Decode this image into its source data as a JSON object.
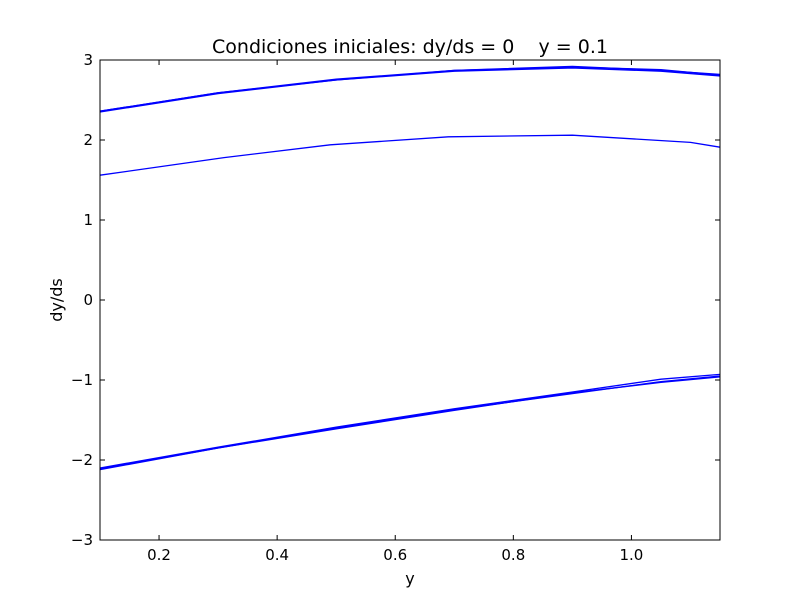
{
  "chart_data": {
    "type": "line",
    "title": "Condiciones iniciales: dy/ds = 0    y = 0.1",
    "xlabel": "y",
    "ylabel": "dy/ds",
    "xlim": [
      0.1,
      1.15
    ],
    "ylim": [
      -3,
      3
    ],
    "xticks": [
      0.2,
      0.4,
      0.6,
      0.8,
      1.0
    ],
    "xtick_labels": [
      "0.2",
      "0.4",
      "0.6",
      "0.8",
      "1.0"
    ],
    "yticks": [
      -3,
      -2,
      -1,
      0,
      1,
      2,
      3
    ],
    "ytick_labels": [
      "−3",
      "−2",
      "−1",
      "0",
      "1",
      "2",
      "3"
    ],
    "grid": false,
    "line_color": "#0000ff",
    "series": [
      {
        "x": [
          0.1,
          0.3,
          0.5,
          0.7,
          0.9,
          1.05,
          1.15
        ],
        "y": [
          2.36,
          2.59,
          2.76,
          2.87,
          2.92,
          2.87,
          2.82
        ]
      },
      {
        "x": [
          0.1,
          0.3,
          0.5,
          0.7,
          0.9,
          1.05,
          1.15
        ],
        "y": [
          2.35,
          2.58,
          2.75,
          2.86,
          2.9,
          2.86,
          2.8
        ]
      },
      {
        "x": [
          0.1,
          0.3,
          0.5,
          0.7,
          0.9,
          1.05,
          1.15
        ],
        "y": [
          2.36,
          2.59,
          2.75,
          2.87,
          2.91,
          2.88,
          2.81
        ]
      },
      {
        "x": [
          0.1,
          0.31,
          0.49,
          0.69,
          0.9,
          1.1,
          1.15
        ],
        "y": [
          1.56,
          1.78,
          1.94,
          2.04,
          2.06,
          1.97,
          1.91
        ]
      },
      {
        "x": [
          0.1,
          0.3,
          0.5,
          0.7,
          0.9,
          1.05,
          1.15
        ],
        "y": [
          -2.12,
          -1.85,
          -1.61,
          -1.38,
          -1.16,
          -1.03,
          -0.96
        ]
      },
      {
        "x": [
          0.1,
          0.3,
          0.5,
          0.7,
          0.9,
          1.05,
          1.15
        ],
        "y": [
          -2.1,
          -1.84,
          -1.59,
          -1.36,
          -1.15,
          -0.99,
          -0.93
        ]
      },
      {
        "x": [
          0.1,
          0.3,
          0.5,
          0.7,
          0.9,
          1.05,
          1.15
        ],
        "y": [
          -2.11,
          -1.85,
          -1.6,
          -1.37,
          -1.17,
          -1.02,
          -0.95
        ]
      }
    ]
  }
}
